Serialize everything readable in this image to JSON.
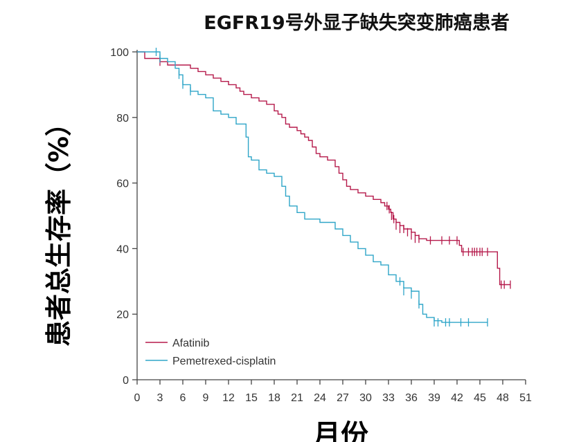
{
  "chart_data": {
    "type": "line",
    "step": true,
    "title": "EGFR19号外显子缺失突变肺癌患者",
    "ylabel": "患者总生存率（%）",
    "xlabel": "月份",
    "xlim": [
      0,
      51
    ],
    "ylim": [
      0,
      100
    ],
    "xticks": [
      0,
      3,
      6,
      9,
      12,
      15,
      18,
      21,
      24,
      27,
      30,
      33,
      36,
      39,
      42,
      45,
      48,
      51
    ],
    "yticks": [
      0,
      20,
      40,
      60,
      80,
      100
    ],
    "legend_position": "bottom-left",
    "series": [
      {
        "name": "Afatinib",
        "color": "#b5194a",
        "points": [
          [
            0,
            100
          ],
          [
            1,
            98
          ],
          [
            3,
            97
          ],
          [
            4,
            96
          ],
          [
            7,
            95
          ],
          [
            8,
            94
          ],
          [
            9,
            93
          ],
          [
            10,
            92
          ],
          [
            11,
            91
          ],
          [
            12,
            90
          ],
          [
            13,
            89
          ],
          [
            13.5,
            88
          ],
          [
            14,
            87
          ],
          [
            15,
            86
          ],
          [
            16,
            85
          ],
          [
            17,
            84
          ],
          [
            18,
            82
          ],
          [
            18.5,
            81
          ],
          [
            19,
            80
          ],
          [
            19.5,
            78
          ],
          [
            20,
            77
          ],
          [
            21,
            76
          ],
          [
            21.5,
            75
          ],
          [
            22,
            74
          ],
          [
            22.5,
            73
          ],
          [
            23,
            71
          ],
          [
            23.5,
            69
          ],
          [
            24,
            68
          ],
          [
            25,
            67
          ],
          [
            26,
            65
          ],
          [
            26.5,
            63
          ],
          [
            27,
            61
          ],
          [
            27.5,
            59
          ],
          [
            28,
            58
          ],
          [
            29,
            57
          ],
          [
            30,
            56
          ],
          [
            31,
            55
          ],
          [
            32,
            54
          ],
          [
            32.5,
            53
          ],
          [
            33,
            52
          ],
          [
            33.3,
            51
          ],
          [
            33.6,
            49
          ],
          [
            34,
            48
          ],
          [
            34.5,
            47
          ],
          [
            35,
            46
          ],
          [
            36,
            45
          ],
          [
            36.5,
            44
          ],
          [
            37,
            43
          ],
          [
            38,
            42.5
          ],
          [
            42,
            42.5
          ],
          [
            42.3,
            41
          ],
          [
            42.6,
            39
          ],
          [
            47,
            39
          ],
          [
            47.3,
            34
          ],
          [
            47.6,
            29
          ],
          [
            49,
            29
          ]
        ],
        "censored": [
          [
            3,
            97
          ],
          [
            32.8,
            53
          ],
          [
            33.1,
            52
          ],
          [
            33.4,
            50
          ],
          [
            33.7,
            49
          ],
          [
            34,
            47
          ],
          [
            34.5,
            46
          ],
          [
            35,
            46
          ],
          [
            35.5,
            45
          ],
          [
            36,
            44
          ],
          [
            36.5,
            43
          ],
          [
            37,
            43
          ],
          [
            38.5,
            42.5
          ],
          [
            40,
            42.5
          ],
          [
            41,
            42.5
          ],
          [
            42,
            42.5
          ],
          [
            42.8,
            39
          ],
          [
            43.5,
            39
          ],
          [
            44,
            39
          ],
          [
            44.3,
            39
          ],
          [
            44.6,
            39
          ],
          [
            45,
            39
          ],
          [
            45.3,
            39
          ],
          [
            46,
            39
          ],
          [
            47.8,
            29
          ],
          [
            48.2,
            29
          ],
          [
            49,
            29
          ]
        ]
      },
      {
        "name": "Pemetrexed-cisplatin",
        "color": "#2ea5c8",
        "points": [
          [
            0,
            100
          ],
          [
            2.5,
            100
          ],
          [
            3,
            98
          ],
          [
            4,
            97
          ],
          [
            5,
            95
          ],
          [
            5.5,
            93
          ],
          [
            6,
            90
          ],
          [
            7,
            88
          ],
          [
            8,
            87
          ],
          [
            9,
            86
          ],
          [
            10,
            82
          ],
          [
            11,
            81
          ],
          [
            12,
            80
          ],
          [
            13,
            78
          ],
          [
            14,
            78
          ],
          [
            14.3,
            74
          ],
          [
            14.6,
            68
          ],
          [
            15,
            67
          ],
          [
            16,
            64
          ],
          [
            17,
            63
          ],
          [
            18,
            62
          ],
          [
            19,
            59
          ],
          [
            19.5,
            56
          ],
          [
            20,
            53
          ],
          [
            21,
            51
          ],
          [
            22,
            49
          ],
          [
            24,
            48
          ],
          [
            26,
            46
          ],
          [
            27,
            44
          ],
          [
            28,
            42
          ],
          [
            29,
            40
          ],
          [
            30,
            38
          ],
          [
            31,
            36
          ],
          [
            32,
            35
          ],
          [
            33,
            32
          ],
          [
            34,
            30
          ],
          [
            35,
            28
          ],
          [
            36,
            27
          ],
          [
            37,
            23
          ],
          [
            37.5,
            20
          ],
          [
            38,
            19
          ],
          [
            39,
            18
          ],
          [
            40,
            17.5
          ],
          [
            46,
            17.5
          ]
        ],
        "censored": [
          [
            2.5,
            100
          ],
          [
            3,
            98
          ],
          [
            5.5,
            93
          ],
          [
            6,
            90
          ],
          [
            7,
            88
          ],
          [
            34.5,
            30
          ],
          [
            35,
            27
          ],
          [
            36,
            26
          ],
          [
            37,
            23
          ],
          [
            39,
            17.5
          ],
          [
            39.5,
            17.5
          ],
          [
            40.5,
            17.5
          ],
          [
            41,
            17.5
          ],
          [
            42.5,
            17.5
          ],
          [
            43.5,
            17.5
          ],
          [
            46,
            17.5
          ]
        ]
      }
    ]
  }
}
